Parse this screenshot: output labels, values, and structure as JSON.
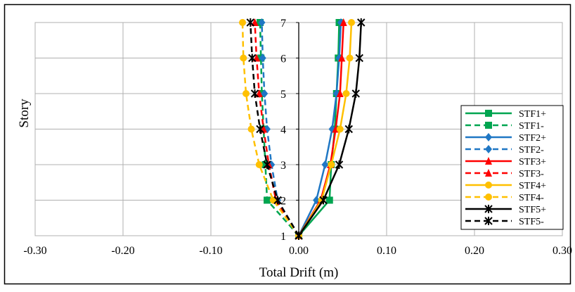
{
  "chart_data": {
    "type": "line",
    "xlabel": "Total Drift (m)",
    "ylabel": "Story",
    "xlim": [
      -0.3,
      0.3
    ],
    "xticks": [
      "-0.30",
      "-0.20",
      "-0.10",
      "0.00",
      "0.10",
      "0.20",
      "0.30"
    ],
    "xtick_values": [
      -0.3,
      -0.2,
      -0.1,
      0.0,
      0.1,
      0.2,
      0.3
    ],
    "ylim": [
      1,
      7
    ],
    "yticks": [
      "1",
      "2",
      "3",
      "4",
      "5",
      "6",
      "7"
    ],
    "ytick_values": [
      1,
      2,
      3,
      4,
      5,
      6,
      7
    ],
    "grid": true,
    "legend_position": "right",
    "series": [
      {
        "name": "STF1+",
        "color": "#00a550",
        "dash": "solid",
        "marker": "square",
        "x": [
          0.0,
          0.035,
          0.037,
          0.041,
          0.043,
          0.045,
          0.046
        ],
        "y": [
          1,
          2,
          3,
          4,
          5,
          6,
          7
        ]
      },
      {
        "name": "STF1-",
        "color": "#00a550",
        "dash": "dashed",
        "marker": "square",
        "x": [
          0.0,
          -0.036,
          -0.038,
          -0.04,
          -0.042,
          -0.043,
          -0.044
        ],
        "y": [
          1,
          2,
          3,
          4,
          5,
          6,
          7
        ]
      },
      {
        "name": "STF2+",
        "color": "#1f77c4",
        "dash": "solid",
        "marker": "diamond",
        "x": [
          0.0,
          0.02,
          0.03,
          0.038,
          0.043,
          0.046,
          0.048
        ],
        "y": [
          1,
          2,
          3,
          4,
          5,
          6,
          7
        ]
      },
      {
        "name": "STF2-",
        "color": "#1f77c4",
        "dash": "dashed",
        "marker": "diamond",
        "x": [
          0.0,
          -0.024,
          -0.031,
          -0.036,
          -0.039,
          -0.041,
          -0.042
        ],
        "y": [
          1,
          2,
          3,
          4,
          5,
          6,
          7
        ]
      },
      {
        "name": "STF3+",
        "color": "#ff0000",
        "dash": "solid",
        "marker": "triangle",
        "x": [
          0.0,
          0.025,
          0.036,
          0.042,
          0.047,
          0.049,
          0.051
        ],
        "y": [
          1,
          2,
          3,
          4,
          5,
          6,
          7
        ]
      },
      {
        "name": "STF3-",
        "color": "#ff0000",
        "dash": "dashed",
        "marker": "triangle",
        "x": [
          0.0,
          -0.026,
          -0.034,
          -0.04,
          -0.045,
          -0.048,
          -0.05
        ],
        "y": [
          1,
          2,
          3,
          4,
          5,
          6,
          7
        ]
      },
      {
        "name": "STF4+",
        "color": "#ffc000",
        "dash": "solid",
        "marker": "circle",
        "x": [
          0.0,
          0.026,
          0.037,
          0.047,
          0.054,
          0.058,
          0.06
        ],
        "y": [
          1,
          2,
          3,
          4,
          5,
          6,
          7
        ]
      },
      {
        "name": "STF4-",
        "color": "#ffc000",
        "dash": "dashed",
        "marker": "circle",
        "x": [
          0.0,
          -0.029,
          -0.045,
          -0.054,
          -0.06,
          -0.063,
          -0.064
        ],
        "y": [
          1,
          2,
          3,
          4,
          5,
          6,
          7
        ]
      },
      {
        "name": "STF5+",
        "color": "#000000",
        "dash": "solid",
        "marker": "star",
        "x": [
          0.0,
          0.028,
          0.046,
          0.057,
          0.065,
          0.069,
          0.071
        ],
        "y": [
          1,
          2,
          3,
          4,
          5,
          6,
          7
        ]
      },
      {
        "name": "STF5-",
        "color": "#000000",
        "dash": "dashed",
        "marker": "star",
        "x": [
          0.0,
          -0.024,
          -0.036,
          -0.044,
          -0.05,
          -0.053,
          -0.055
        ],
        "y": [
          1,
          2,
          3,
          4,
          5,
          6,
          7
        ]
      }
    ]
  }
}
